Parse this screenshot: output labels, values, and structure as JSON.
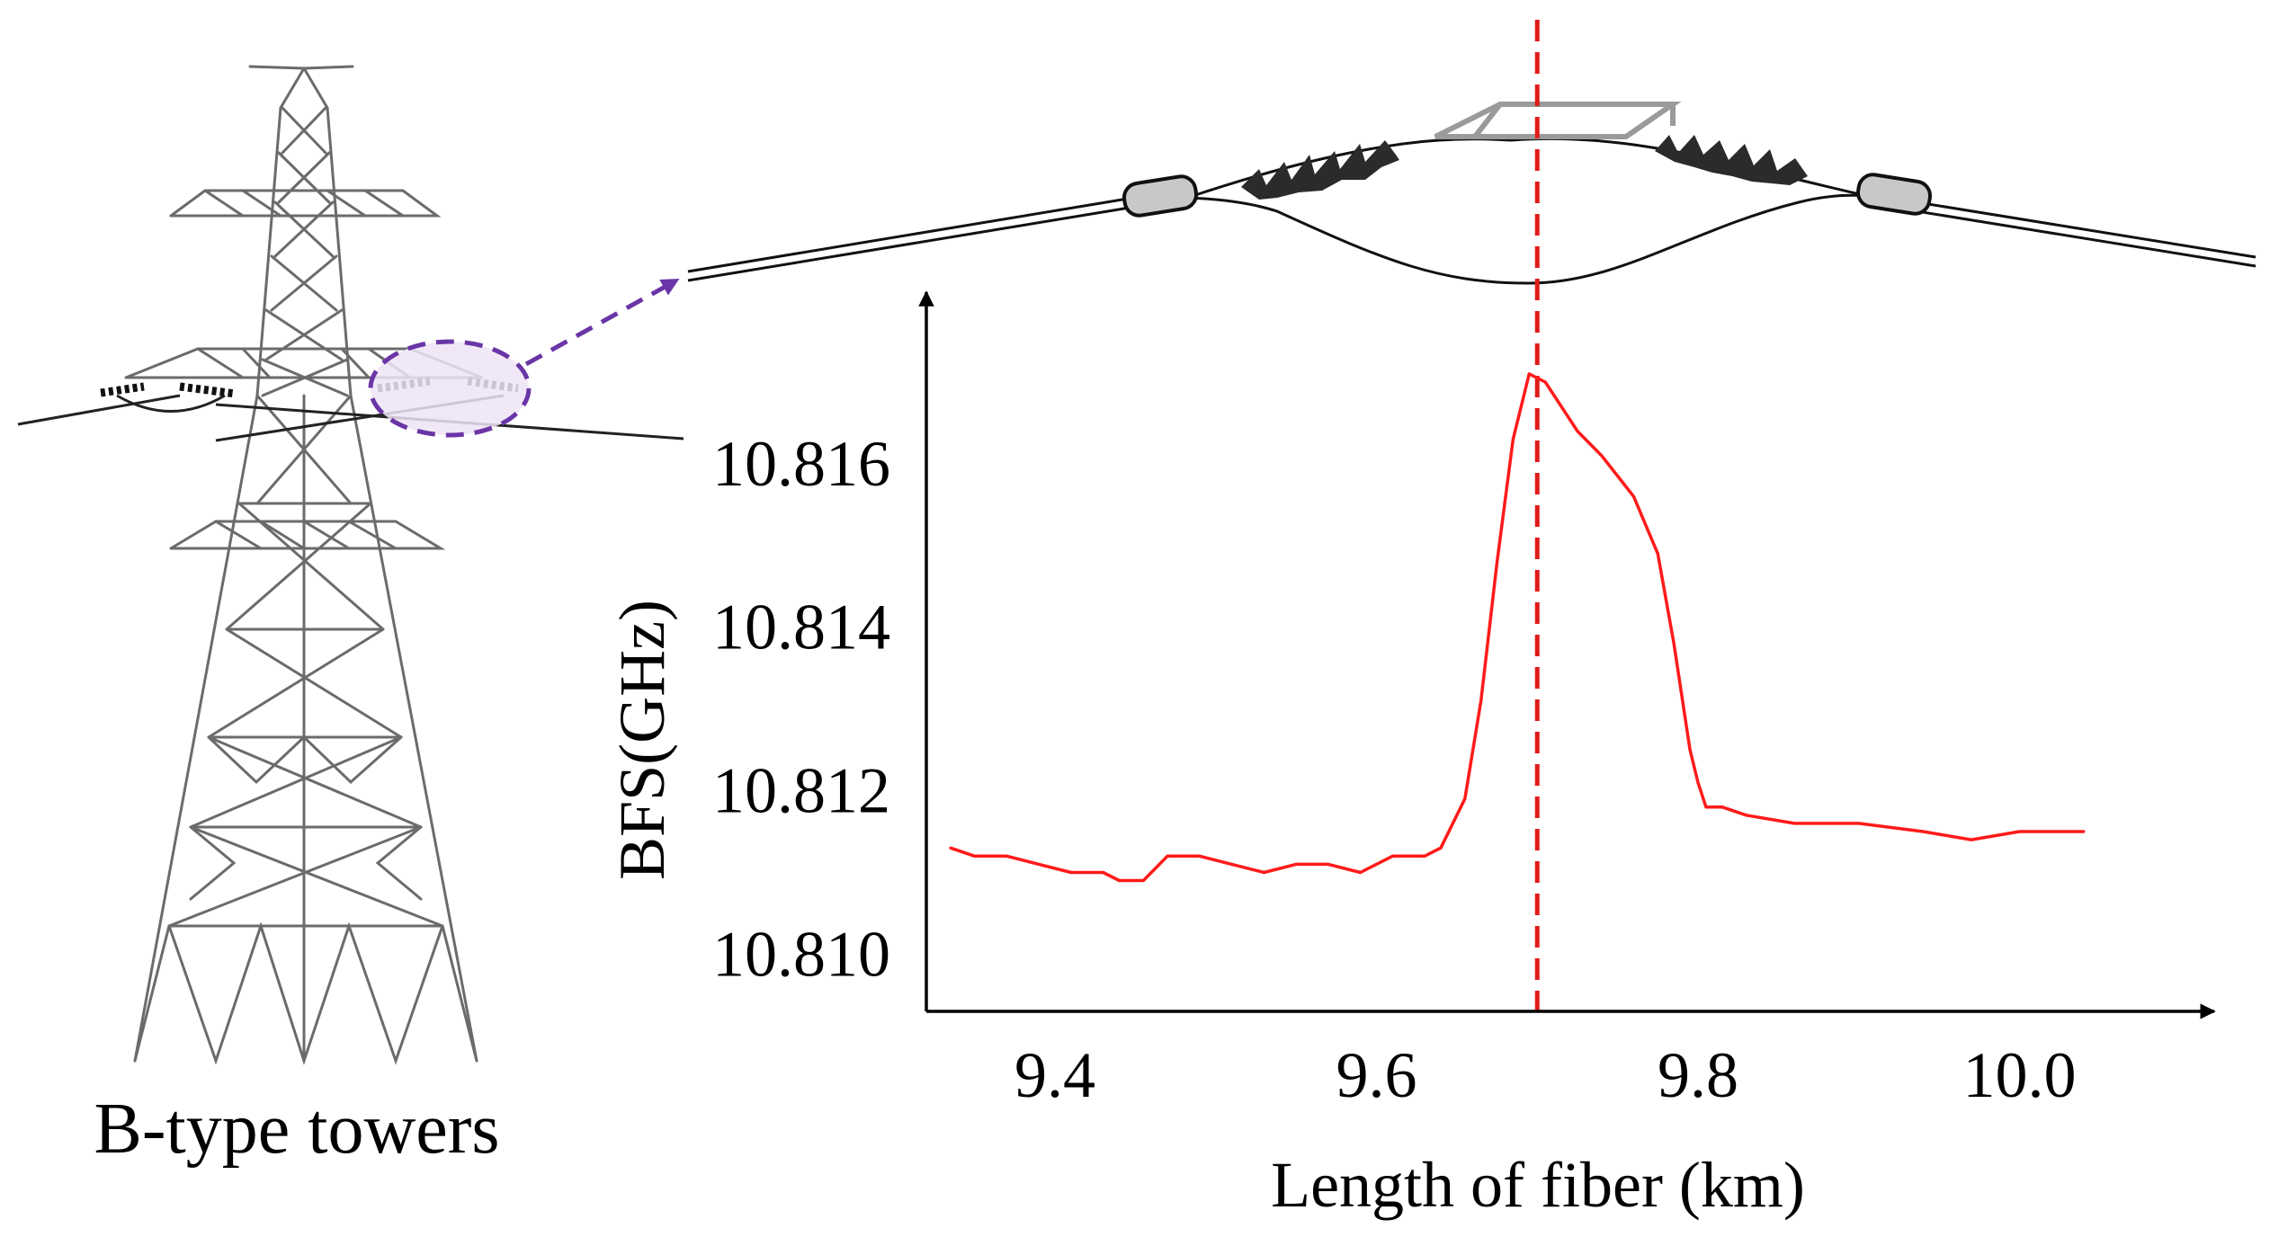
{
  "caption": "B-type towers",
  "colors": {
    "series": "#ff1a1a",
    "marker": "#e01a1a",
    "callout": "#6a35a6",
    "callout_fill": "#efe4f6",
    "tower": "#6b6b6b",
    "fitting": "#bdbdbd"
  },
  "icons": {
    "tower": "transmission-tower-icon",
    "insulator": "insulator-string-icon",
    "spacer": "spacer-damper-icon",
    "clamp": "cable-clamp-icon"
  },
  "chart_data": {
    "type": "line",
    "title": "",
    "xlabel": "Length of fiber (km)",
    "ylabel": "BFS(GHz)",
    "xlim": [
      9.32,
      10.12
    ],
    "ylim": [
      10.8093,
      10.8181
    ],
    "xticks": [
      9.4,
      9.6,
      9.8,
      10.0
    ],
    "xtick_labels": [
      "9.4",
      "9.6",
      "9.8",
      "10.0"
    ],
    "yticks": [
      10.81,
      10.812,
      10.814,
      10.816
    ],
    "ytick_labels": [
      "10.810",
      "10.812",
      "10.814",
      "10.816"
    ],
    "marker_line_x": 9.7,
    "series": [
      {
        "name": "BFS",
        "x": [
          9.335,
          9.35,
          9.37,
          9.39,
          9.41,
          9.43,
          9.44,
          9.455,
          9.47,
          9.49,
          9.51,
          9.53,
          9.55,
          9.57,
          9.59,
          9.61,
          9.63,
          9.64,
          9.655,
          9.665,
          9.675,
          9.685,
          9.695,
          9.705,
          9.715,
          9.725,
          9.74,
          9.76,
          9.775,
          9.785,
          9.795,
          9.8,
          9.805,
          9.815,
          9.83,
          9.86,
          9.9,
          9.94,
          9.97,
          10.0,
          10.04
        ],
        "y": [
          10.8113,
          10.8112,
          10.8112,
          10.8111,
          10.811,
          10.811,
          10.8109,
          10.8109,
          10.8112,
          10.8112,
          10.8111,
          10.811,
          10.8111,
          10.8111,
          10.811,
          10.8112,
          10.8112,
          10.8113,
          10.8119,
          10.8131,
          10.8148,
          10.8163,
          10.8171,
          10.817,
          10.8167,
          10.8164,
          10.8161,
          10.8156,
          10.8149,
          10.8138,
          10.8125,
          10.8121,
          10.8118,
          10.8118,
          10.8117,
          10.8116,
          10.8116,
          10.8115,
          10.8114,
          10.8115,
          10.8115
        ]
      }
    ]
  }
}
